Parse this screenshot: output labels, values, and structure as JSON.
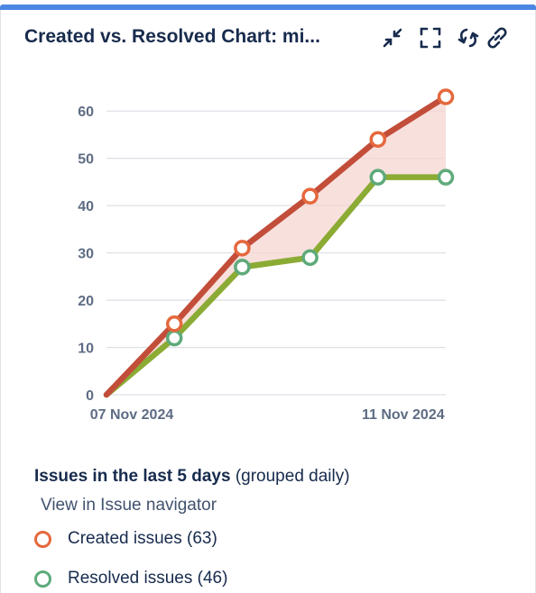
{
  "gadget": {
    "title": "Created vs. Resolved Chart: mi...",
    "tools": [
      {
        "name": "minimize-icon",
        "label": "minimize"
      },
      {
        "name": "maximize-icon",
        "label": "maximize"
      },
      {
        "name": "refresh-icon",
        "label": "refresh"
      },
      {
        "name": "link-icon",
        "label": "link"
      }
    ]
  },
  "summary": {
    "bold": "Issues in the last 5 days",
    "rest": "(grouped daily)",
    "link": "View in Issue navigator"
  },
  "legend": {
    "created": "Created issues (63)",
    "resolved": "Resolved issues (46)"
  },
  "colors": {
    "created": "#c24e3a",
    "created_marker": "#e5683d",
    "resolved": "#8bab34",
    "resolved_marker": "#5eaa7a",
    "fill": "#f5d6d2",
    "grid": "#dfe1e6",
    "axis_text": "#5e6c84",
    "accent_bar": "#4c86e3"
  },
  "chart_data": {
    "type": "line",
    "x": [
      "07 Nov 2024",
      "08 Nov 2024",
      "09 Nov 2024",
      "10 Nov 2024",
      "11 Nov 2024",
      "12 Nov 2024"
    ],
    "x_tick_labels": [
      "07 Nov 2024",
      "11 Nov 2024"
    ],
    "y_ticks": [
      0,
      10,
      20,
      30,
      40,
      50,
      60
    ],
    "ylim": [
      0,
      65
    ],
    "grid": true,
    "series": [
      {
        "name": "Created issues",
        "values": [
          0,
          15,
          31,
          42,
          54,
          63
        ]
      },
      {
        "name": "Resolved issues",
        "values": [
          0,
          12,
          27,
          29,
          46,
          46
        ]
      }
    ]
  }
}
